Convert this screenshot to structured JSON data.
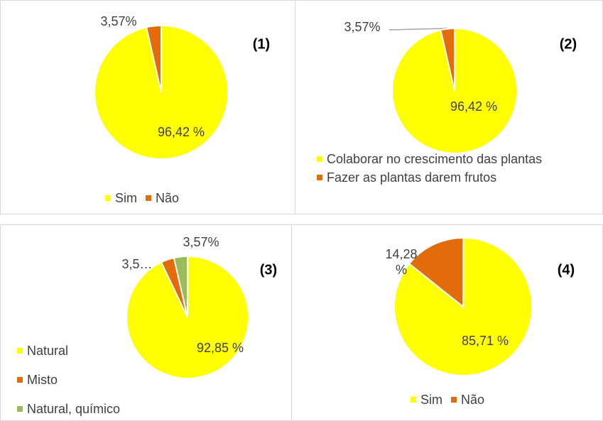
{
  "chart_data": [
    {
      "type": "pie",
      "title": "(1)",
      "categories": [
        "Sim",
        "Não"
      ],
      "values": [
        96.42,
        3.57
      ],
      "value_labels": [
        "96,42 %",
        "3,57%"
      ],
      "colors": [
        "#ffff00",
        "#e36c0a"
      ]
    },
    {
      "type": "pie",
      "title": "(2)",
      "categories": [
        "Colaborar no crescimento das plantas",
        "Fazer as plantas darem frutos"
      ],
      "values": [
        96.42,
        3.57
      ],
      "value_labels": [
        "96,42 %",
        "3,57%"
      ],
      "colors": [
        "#ffff00",
        "#e36c0a"
      ]
    },
    {
      "type": "pie",
      "title": "(3)",
      "categories": [
        "Natural",
        "Misto",
        "Natural, químico"
      ],
      "values": [
        92.85,
        3.5,
        3.57
      ],
      "value_labels": [
        "92,85 %",
        "3,5…",
        "3,57%"
      ],
      "colors": [
        "#ffff00",
        "#e36c0a",
        "#9bbb59"
      ]
    },
    {
      "type": "pie",
      "title": "(4)",
      "categories": [
        "Sim",
        "Não"
      ],
      "values": [
        85.71,
        14.28
      ],
      "value_labels": [
        "85,71 %",
        "14,28 %"
      ],
      "colors": [
        "#ffff00",
        "#e36c0a"
      ]
    }
  ]
}
